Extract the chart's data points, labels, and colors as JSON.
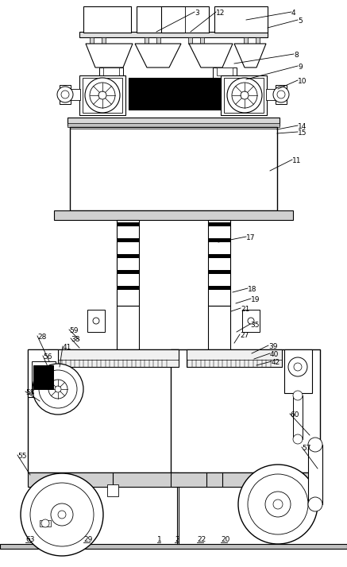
{
  "bg_color": "#ffffff",
  "lc": "#000000",
  "fig_width": 4.37,
  "fig_height": 7.14,
  "dpi": 100
}
